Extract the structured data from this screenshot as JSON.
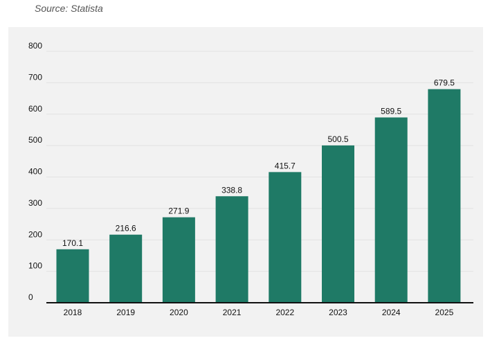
{
  "source_note": "Source: Statista",
  "colors": {
    "bar": "#1f7a66",
    "panel_background": "#f2f2f2",
    "gridline": "#e2e2e2",
    "baseline": "#111111",
    "text": "#111111"
  },
  "chart_data": {
    "type": "bar",
    "categories": [
      "2018",
      "2019",
      "2020",
      "2021",
      "2022",
      "2023",
      "2024",
      "2025"
    ],
    "values": [
      170.1,
      216.6,
      271.9,
      338.8,
      415.7,
      500.5,
      589.5,
      679.5
    ],
    "data_labels": [
      "170.1",
      "216.6",
      "271.9",
      "338.8",
      "415.7",
      "500.5",
      "589.5",
      "679.5"
    ],
    "yticks": [
      "0",
      "100",
      "200",
      "300",
      "400",
      "500",
      "600",
      "700",
      "800"
    ],
    "ylim": [
      0,
      800
    ],
    "grid": true,
    "legend": "none"
  }
}
